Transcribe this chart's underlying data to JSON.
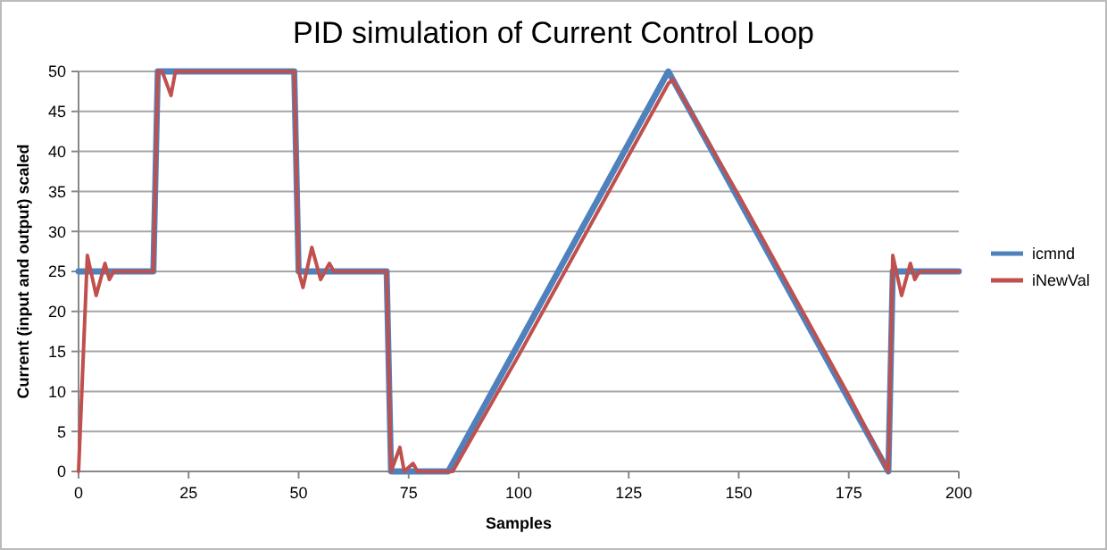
{
  "chart_data": {
    "type": "line",
    "title": "PID simulation of Current Control Loop",
    "xlabel": "Samples",
    "ylabel": "Current (input and output) scaled",
    "xlim": [
      0,
      200
    ],
    "xticks": [
      0,
      25,
      50,
      75,
      100,
      125,
      150,
      175,
      200
    ],
    "ylim": [
      0,
      50
    ],
    "yticks": [
      0,
      5,
      10,
      15,
      20,
      25,
      30,
      35,
      40,
      45,
      50
    ],
    "grid": "y",
    "legend": "right",
    "marker": "none",
    "line_style": "solid",
    "series": [
      {
        "name": "icmnd",
        "color": "#4f81bd",
        "x": [
          0,
          17,
          18,
          49,
          50,
          70,
          71,
          84,
          134,
          184,
          185,
          200
        ],
        "values": [
          25,
          25,
          50,
          50,
          25,
          25,
          0,
          0,
          50,
          0,
          25,
          25
        ]
      },
      {
        "name": "iNewVal",
        "color": "#c0504d",
        "x": [
          0,
          2,
          4,
          6,
          7,
          8,
          17,
          18,
          19,
          21,
          22,
          49,
          50,
          51,
          53,
          55,
          57,
          58,
          70,
          71,
          73,
          74,
          76,
          77,
          85,
          100,
          125,
          134,
          135,
          136,
          150,
          175,
          184,
          185,
          187,
          189,
          190,
          191,
          200
        ],
        "values": [
          0,
          27,
          22,
          26,
          24,
          25,
          25,
          50,
          50,
          47,
          50,
          50,
          25,
          23,
          28,
          24,
          26,
          25,
          25,
          0,
          3,
          0,
          1,
          0,
          0,
          14.5,
          39.5,
          48.5,
          49,
          48,
          34.5,
          9.5,
          0,
          27,
          22,
          26,
          24,
          25,
          25
        ]
      }
    ]
  }
}
